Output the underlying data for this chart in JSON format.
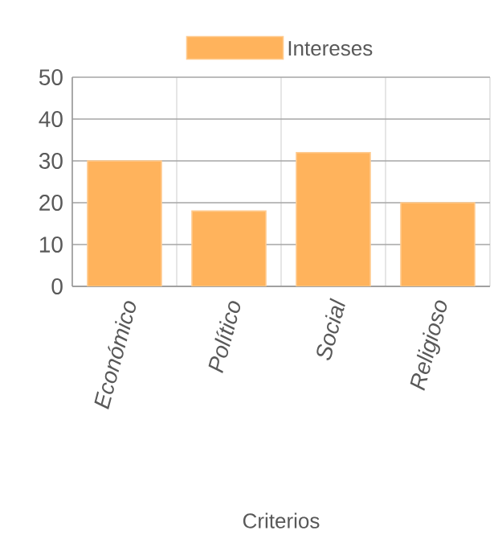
{
  "chart_data": {
    "type": "bar",
    "xlabel": "Criterios",
    "categories": [
      "Económico",
      "Político",
      "Social",
      "Religioso"
    ],
    "series": [
      {
        "name": "Intereses",
        "color": "#ffb35c",
        "values": [
          30,
          18,
          32,
          20
        ]
      }
    ],
    "ylim": [
      0,
      50
    ],
    "yticks": [
      0,
      10,
      20,
      30,
      40,
      50
    ],
    "grid": true,
    "legend": "top"
  }
}
